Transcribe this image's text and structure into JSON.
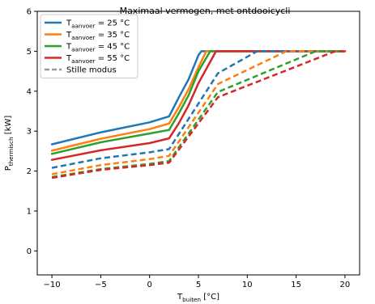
{
  "chart_data": {
    "type": "line",
    "title": "Maximaal vermogen, met ontdooicycli",
    "xlabel": {
      "main": "T",
      "sub": "buiten",
      "unit": " [°C]"
    },
    "ylabel": {
      "main": "P",
      "sub": "thermisch",
      "unit": " [kW]"
    },
    "xlim": [
      -11.5,
      21.5
    ],
    "ylim": [
      -0.6,
      6
    ],
    "xticks": [
      -10,
      -5,
      0,
      5,
      10,
      15,
      20
    ],
    "yticks": [
      0,
      1,
      2,
      3,
      4,
      5,
      6
    ],
    "grid": false,
    "legend_position": "top-left",
    "series": [
      {
        "name": {
          "main": "T",
          "sub": "aanvoer",
          "suffix": " = 25 °C"
        },
        "color": "#1f77b4",
        "style": "solid",
        "points": [
          [
            -10,
            2.67
          ],
          [
            -5,
            2.97
          ],
          [
            0,
            3.22
          ],
          [
            2,
            3.37
          ],
          [
            3,
            3.85
          ],
          [
            4,
            4.3
          ],
          [
            5,
            4.9
          ],
          [
            5.3,
            5.0
          ],
          [
            20,
            5.0
          ]
        ]
      },
      {
        "name": {
          "main": "T",
          "sub": "aanvoer",
          "suffix": " = 35 °C"
        },
        "color": "#ff7f0e",
        "style": "solid",
        "points": [
          [
            -10,
            2.51
          ],
          [
            -5,
            2.81
          ],
          [
            0,
            3.05
          ],
          [
            2,
            3.19
          ],
          [
            3,
            3.6
          ],
          [
            4,
            4.05
          ],
          [
            5,
            4.6
          ],
          [
            5.8,
            5.0
          ],
          [
            20,
            5.0
          ]
        ]
      },
      {
        "name": {
          "main": "T",
          "sub": "aanvoer",
          "suffix": " = 45 °C"
        },
        "color": "#2ca02c",
        "style": "solid",
        "points": [
          [
            -10,
            2.43
          ],
          [
            -5,
            2.72
          ],
          [
            0,
            2.94
          ],
          [
            2,
            3.03
          ],
          [
            3,
            3.45
          ],
          [
            4,
            3.9
          ],
          [
            5,
            4.5
          ],
          [
            6.2,
            5.0
          ],
          [
            20,
            5.0
          ]
        ]
      },
      {
        "name": {
          "main": "T",
          "sub": "aanvoer",
          "suffix": " = 55 °C"
        },
        "color": "#d62728",
        "style": "solid",
        "points": [
          [
            -10,
            2.28
          ],
          [
            -5,
            2.52
          ],
          [
            0,
            2.7
          ],
          [
            2,
            2.82
          ],
          [
            3,
            3.2
          ],
          [
            4,
            3.65
          ],
          [
            5,
            4.2
          ],
          [
            6.8,
            5.0
          ],
          [
            20,
            5.0
          ]
        ]
      },
      {
        "name": null,
        "color": "#1f77b4",
        "style": "dashed",
        "points": [
          [
            -10,
            2.08
          ],
          [
            -5,
            2.32
          ],
          [
            0,
            2.47
          ],
          [
            2,
            2.55
          ],
          [
            7,
            4.45
          ],
          [
            11,
            5.0
          ],
          [
            20,
            5.0
          ]
        ]
      },
      {
        "name": null,
        "color": "#ff7f0e",
        "style": "dashed",
        "points": [
          [
            -10,
            1.92
          ],
          [
            -5,
            2.15
          ],
          [
            0,
            2.3
          ],
          [
            2,
            2.38
          ],
          [
            7,
            4.18
          ],
          [
            14,
            5.0
          ],
          [
            20,
            5.0
          ]
        ]
      },
      {
        "name": null,
        "color": "#2ca02c",
        "style": "dashed",
        "points": [
          [
            -10,
            1.85
          ],
          [
            -5,
            2.05
          ],
          [
            0,
            2.18
          ],
          [
            2,
            2.25
          ],
          [
            7,
            3.98
          ],
          [
            17,
            5.0
          ],
          [
            20,
            5.0
          ]
        ]
      },
      {
        "name": null,
        "color": "#d62728",
        "style": "dashed",
        "points": [
          [
            -10,
            1.83
          ],
          [
            -5,
            2.03
          ],
          [
            0,
            2.15
          ],
          [
            2,
            2.21
          ],
          [
            7,
            3.85
          ],
          [
            19,
            5.0
          ],
          [
            20,
            5.0
          ]
        ]
      }
    ],
    "legend": [
      {
        "kind": "series",
        "series_index": 0
      },
      {
        "kind": "series",
        "series_index": 1
      },
      {
        "kind": "series",
        "series_index": 2
      },
      {
        "kind": "series",
        "series_index": 3
      },
      {
        "kind": "plain",
        "label": "Stille modus",
        "color": "#999999",
        "style": "dashed"
      }
    ]
  }
}
